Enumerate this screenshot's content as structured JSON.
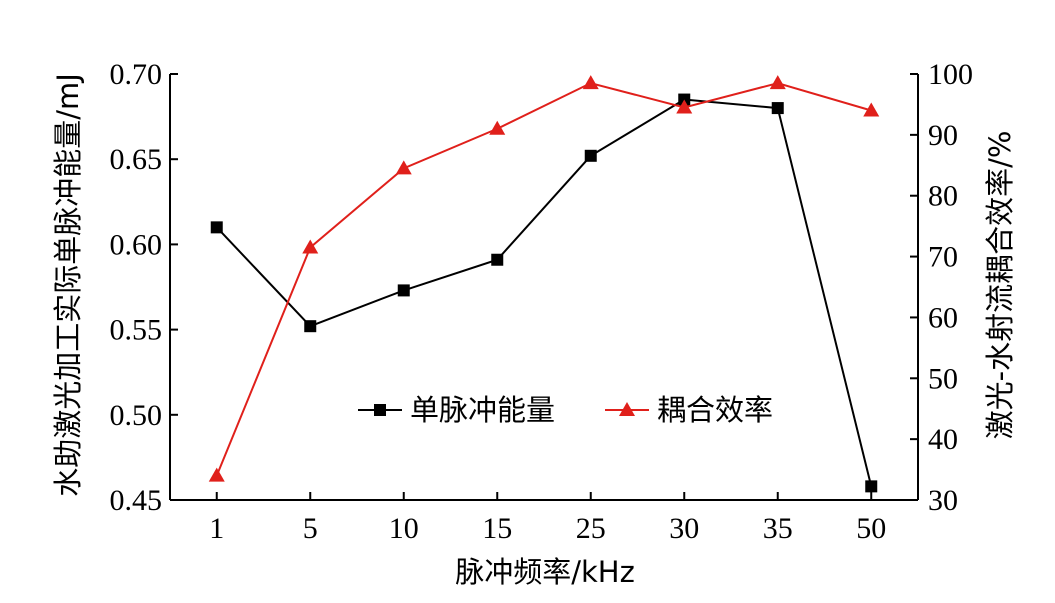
{
  "chart_data": {
    "type": "line",
    "categories": [
      "1",
      "5",
      "10",
      "15",
      "25",
      "30",
      "35",
      "50"
    ],
    "xlabel": "脉冲频率/kHz",
    "ylabel_left": "水助激光加工实际单脉冲能量/mJ",
    "ylabel_right": "激光-水射流耦合效率/%",
    "ylim_left": [
      0.45,
      0.7
    ],
    "ylim_right": [
      30,
      100
    ],
    "yticks_left": [
      "0.45",
      "0.50",
      "0.55",
      "0.60",
      "0.65",
      "0.70"
    ],
    "yticks_right": [
      "30",
      "40",
      "50",
      "60",
      "70",
      "80",
      "90",
      "100"
    ],
    "grid": false,
    "legend_position": "center",
    "series": [
      {
        "name": "单脉冲能量",
        "axis": "left",
        "color": "#000000",
        "marker": "square",
        "values": [
          0.61,
          0.552,
          0.573,
          0.591,
          0.652,
          0.685,
          0.68,
          0.458
        ]
      },
      {
        "name": "耦合效率",
        "axis": "right",
        "color": "#e0201b",
        "marker": "triangle",
        "values": [
          34,
          71.5,
          84.5,
          91,
          98.5,
          94.5,
          98.5,
          94
        ]
      }
    ]
  }
}
